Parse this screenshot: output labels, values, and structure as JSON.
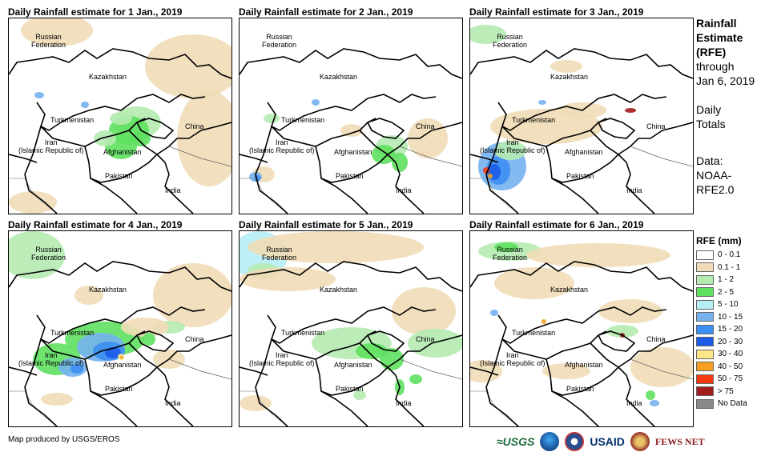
{
  "panels": [
    {
      "title": "Daily Rainfall estimate for 1 Jan., 2019",
      "scheme": 1
    },
    {
      "title": "Daily Rainfall estimate for 2 Jan., 2019",
      "scheme": 2
    },
    {
      "title": "Daily Rainfall estimate for 3 Jan., 2019",
      "scheme": 3
    },
    {
      "title": "Daily Rainfall estimate for 4 Jan., 2019",
      "scheme": 4
    },
    {
      "title": "Daily Rainfall estimate for 5 Jan., 2019",
      "scheme": 5
    },
    {
      "title": "Daily Rainfall estimate for 6 Jan., 2019",
      "scheme": 6
    }
  ],
  "labels": {
    "russia": "Russian\nFederation",
    "kazakhstan": "Kazakhstan",
    "turkmenistan": "Turkmenistan",
    "iran": "Iran\n(Islamic Republic of)",
    "afghanistan": "Afghanistan",
    "pakistan": "Pakistan",
    "china": "China",
    "india": "India"
  },
  "side": {
    "l1": "Rainfall",
    "l2": "Estimate",
    "l3": "(RFE)",
    "l4": "through",
    "l5": "Jan 6, 2019",
    "l6": "Daily",
    "l7": "Totals",
    "l8": "Data:",
    "l9": "NOAA-",
    "l10": "RFE2.0"
  },
  "legend": {
    "title": "RFE (mm)",
    "items": [
      {
        "label": "0 - 0.1",
        "color": "#ffffff"
      },
      {
        "label": "0.1 - 1",
        "color": "#efdcb6"
      },
      {
        "label": "1 - 2",
        "color": "#b5ebb1"
      },
      {
        "label": "2 - 5",
        "color": "#5fe05f"
      },
      {
        "label": "5 - 10",
        "color": "#b5eef5"
      },
      {
        "label": "10 - 15",
        "color": "#74b1ee"
      },
      {
        "label": "15 - 20",
        "color": "#3d8ef2"
      },
      {
        "label": "20 - 30",
        "color": "#1c5ce8"
      },
      {
        "label": "30 - 40",
        "color": "#fde58a"
      },
      {
        "label": "40 - 50",
        "color": "#f5a020"
      },
      {
        "label": "50 - 75",
        "color": "#f33a10"
      },
      {
        "label": "> 75",
        "color": "#a11c1c"
      },
      {
        "label": "No Data",
        "color": "#8a8a8a"
      }
    ]
  },
  "footer": {
    "credit": "Map produced by USGS/EROS",
    "logo_usgs": "≈USGS",
    "logo_usaid": "USAID",
    "logo_fews": "FEWS NET"
  }
}
